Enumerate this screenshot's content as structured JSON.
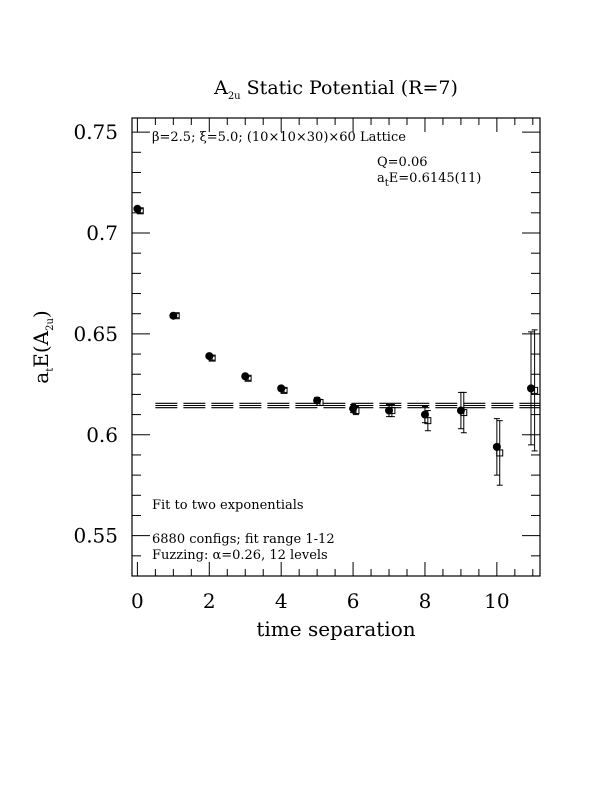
{
  "chart_data": {
    "type": "scatter",
    "title": "A",
    "title_sub": "2u",
    "title_rest": " Static Potential (R=7)",
    "xlabel": "time separation",
    "ylabel_parts": [
      "a",
      "t",
      "E(A",
      "2u",
      ")"
    ],
    "xlim": [
      -0.15,
      11.2
    ],
    "ylim": [
      0.53,
      0.757
    ],
    "xticks": [
      0,
      2,
      4,
      6,
      8,
      10
    ],
    "xtick_labels": [
      "0",
      "2",
      "4",
      "6",
      "8",
      "10"
    ],
    "yticks": [
      0.55,
      0.6,
      0.65,
      0.7,
      0.75
    ],
    "ytick_labels": [
      "0.55",
      "0.6",
      "0.65",
      "0.7",
      "0.75"
    ],
    "x_minor_step": 0.5,
    "y_minor_step": 0.01,
    "annotations": {
      "lattice": "β=2.5; ξ=5.0; (10×10×30)×60 Lattice",
      "q": "Q=0.06",
      "energy_prefix": "a",
      "energy_sub": "t",
      "energy_rest": "E=0.6145(11)",
      "fit": "Fit to two exponentials",
      "configs": "6880 configs; fit range 1-12",
      "fuzzing": "Fuzzing: α=0.26, 12 levels"
    },
    "fit": {
      "value": 0.6145,
      "error": 0.0011,
      "x_range": [
        0.5,
        11.2
      ]
    },
    "series": [
      {
        "marker": "filled-circle",
        "x": [
          0,
          1,
          2,
          3,
          4,
          5,
          6,
          7,
          8,
          9,
          10,
          10.95
        ],
        "y": [
          0.712,
          0.659,
          0.639,
          0.629,
          0.623,
          0.617,
          0.613,
          0.612,
          0.61,
          0.612,
          0.594,
          0.623
        ],
        "err": [
          0.001,
          0.001,
          0.001,
          0.001,
          0.001,
          0.0015,
          0.002,
          0.003,
          0.004,
          0.009,
          0.014,
          0.028
        ]
      },
      {
        "marker": "open-square",
        "x": [
          0.08,
          1.08,
          2.08,
          3.08,
          4.08,
          5.08,
          6.08,
          7.08,
          8.08,
          9.08,
          10.08,
          11.05
        ],
        "y": [
          0.711,
          0.659,
          0.638,
          0.628,
          0.622,
          0.616,
          0.612,
          0.612,
          0.607,
          0.611,
          0.591,
          0.622
        ],
        "err": [
          0.001,
          0.001,
          0.001,
          0.001,
          0.001,
          0.0015,
          0.002,
          0.003,
          0.005,
          0.01,
          0.016,
          0.03
        ]
      }
    ]
  }
}
